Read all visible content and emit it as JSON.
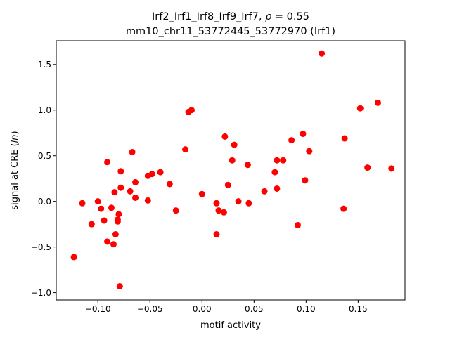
{
  "chart_data": {
    "type": "scatter",
    "title_line1": "Irf2_Irf1_Irf8_Irf9_Irf7, ",
    "title_rho_symbol": "ρ",
    "title_rho_value": " = 0.55",
    "title_line2": "mm10_chr11_53772445_53772970 (Irf1)",
    "xlabel": "motif activity",
    "ylabel_prefix": "signal at CRE (",
    "ylabel_italic": "ln",
    "ylabel_suffix": ")",
    "xlim": [
      -0.14,
      0.195
    ],
    "ylim": [
      -1.08,
      1.76
    ],
    "xticks": [
      {
        "value": -0.1,
        "label": "−0.10"
      },
      {
        "value": -0.05,
        "label": "−0.05"
      },
      {
        "value": 0.0,
        "label": "0.00"
      },
      {
        "value": 0.05,
        "label": "0.05"
      },
      {
        "value": 0.1,
        "label": "0.10"
      },
      {
        "value": 0.15,
        "label": "0.15"
      }
    ],
    "yticks": [
      {
        "value": -1.0,
        "label": "−1.0"
      },
      {
        "value": -0.5,
        "label": "−0.5"
      },
      {
        "value": 0.0,
        "label": "0.0"
      },
      {
        "value": 0.5,
        "label": "0.5"
      },
      {
        "value": 1.0,
        "label": "1.0"
      },
      {
        "value": 1.5,
        "label": "1.5"
      }
    ],
    "grid": false,
    "marker_color": "#ff0000",
    "points": [
      {
        "x": -0.123,
        "y": -0.61
      },
      {
        "x": -0.115,
        "y": -0.02
      },
      {
        "x": -0.106,
        "y": -0.25
      },
      {
        "x": -0.1,
        "y": 0.0
      },
      {
        "x": -0.097,
        "y": -0.08
      },
      {
        "x": -0.094,
        "y": -0.21
      },
      {
        "x": -0.091,
        "y": 0.43
      },
      {
        "x": -0.091,
        "y": -0.44
      },
      {
        "x": -0.087,
        "y": -0.07
      },
      {
        "x": -0.085,
        "y": -0.47
      },
      {
        "x": -0.084,
        "y": 0.1
      },
      {
        "x": -0.083,
        "y": -0.36
      },
      {
        "x": -0.081,
        "y": -0.2
      },
      {
        "x": -0.081,
        "y": -0.22
      },
      {
        "x": -0.08,
        "y": -0.14
      },
      {
        "x": -0.078,
        "y": 0.33
      },
      {
        "x": -0.078,
        "y": 0.15
      },
      {
        "x": -0.079,
        "y": -0.93
      },
      {
        "x": -0.069,
        "y": 0.11
      },
      {
        "x": -0.067,
        "y": 0.54
      },
      {
        "x": -0.064,
        "y": 0.21
      },
      {
        "x": -0.064,
        "y": 0.04
      },
      {
        "x": -0.052,
        "y": 0.28
      },
      {
        "x": -0.052,
        "y": 0.01
      },
      {
        "x": -0.048,
        "y": 0.3
      },
      {
        "x": -0.04,
        "y": 0.32
      },
      {
        "x": -0.031,
        "y": 0.19
      },
      {
        "x": -0.025,
        "y": -0.1
      },
      {
        "x": -0.016,
        "y": 0.57
      },
      {
        "x": -0.013,
        "y": 0.98
      },
      {
        "x": -0.01,
        "y": 1.0
      },
      {
        "x": 0.0,
        "y": 0.08
      },
      {
        "x": 0.014,
        "y": -0.02
      },
      {
        "x": 0.014,
        "y": -0.36
      },
      {
        "x": 0.016,
        "y": -0.1
      },
      {
        "x": 0.021,
        "y": -0.12
      },
      {
        "x": 0.022,
        "y": 0.71
      },
      {
        "x": 0.025,
        "y": 0.18
      },
      {
        "x": 0.029,
        "y": 0.45
      },
      {
        "x": 0.031,
        "y": 0.62
      },
      {
        "x": 0.035,
        "y": 0.0
      },
      {
        "x": 0.044,
        "y": 0.4
      },
      {
        "x": 0.045,
        "y": -0.02
      },
      {
        "x": 0.06,
        "y": 0.11
      },
      {
        "x": 0.07,
        "y": 0.32
      },
      {
        "x": 0.072,
        "y": 0.45
      },
      {
        "x": 0.072,
        "y": 0.14
      },
      {
        "x": 0.078,
        "y": 0.45
      },
      {
        "x": 0.086,
        "y": 0.67
      },
      {
        "x": 0.092,
        "y": -0.26
      },
      {
        "x": 0.097,
        "y": 0.74
      },
      {
        "x": 0.099,
        "y": 0.23
      },
      {
        "x": 0.103,
        "y": 0.55
      },
      {
        "x": 0.115,
        "y": 1.62
      },
      {
        "x": 0.136,
        "y": -0.08
      },
      {
        "x": 0.137,
        "y": 0.69
      },
      {
        "x": 0.152,
        "y": 1.02
      },
      {
        "x": 0.159,
        "y": 0.37
      },
      {
        "x": 0.169,
        "y": 1.08
      },
      {
        "x": 0.182,
        "y": 0.36
      }
    ]
  }
}
